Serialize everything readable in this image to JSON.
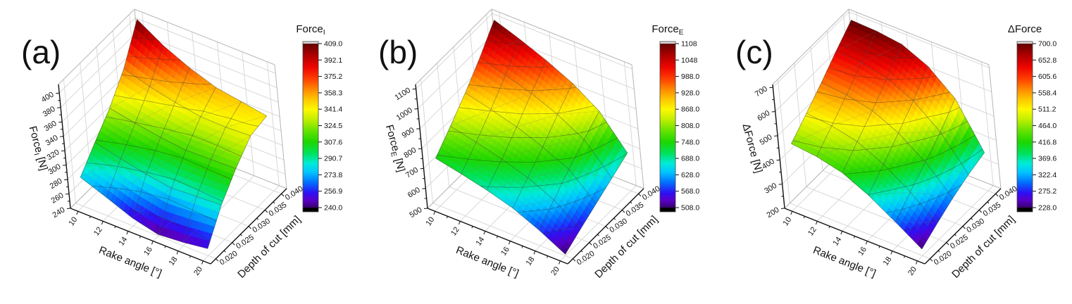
{
  "figure": {
    "background": "#ffffff",
    "description": "Three 3D surface plots of cutting forces versus rake angle and depth of cut"
  },
  "colors": {
    "axis": "#111111",
    "text": "#111111",
    "grid": "#d4d4d4",
    "box_edge": "#b5b5b5",
    "contour_line": "rgba(45,45,45,0.5)",
    "mesh_line": "rgba(70,70,70,0.5)",
    "diagonal_line": "rgba(120,120,120,0.3)",
    "colorbar_above": "#d9d9d9",
    "colorbar_below": "#000000",
    "colormap": [
      {
        "t": 0.0,
        "c": "#38006e"
      },
      {
        "t": 0.045,
        "c": "#5800c8"
      },
      {
        "t": 0.09,
        "c": "#2d10f5"
      },
      {
        "t": 0.155,
        "c": "#0072ff"
      },
      {
        "t": 0.215,
        "c": "#00c4ff"
      },
      {
        "t": 0.27,
        "c": "#00ebd7"
      },
      {
        "t": 0.33,
        "c": "#00e25e"
      },
      {
        "t": 0.4,
        "c": "#1cd600"
      },
      {
        "t": 0.47,
        "c": "#67e300"
      },
      {
        "t": 0.54,
        "c": "#c4ef00"
      },
      {
        "t": 0.6,
        "c": "#fdf800"
      },
      {
        "t": 0.665,
        "c": "#ffc200"
      },
      {
        "t": 0.725,
        "c": "#ff8400"
      },
      {
        "t": 0.785,
        "c": "#ff3f00"
      },
      {
        "t": 0.855,
        "c": "#ee0500"
      },
      {
        "t": 0.925,
        "c": "#b20000"
      },
      {
        "t": 1.0,
        "c": "#620000"
      }
    ]
  },
  "chart_data": [
    {
      "type": "surface",
      "panel_label": "(a)",
      "x_axis": {
        "title": "Rake angle [°]",
        "ticks": [
          "10",
          "12",
          "14",
          "16",
          "18",
          "20"
        ],
        "tick_values": [
          10,
          12,
          14,
          16,
          18,
          20
        ],
        "range": [
          9.4,
          20.6
        ]
      },
      "y_axis": {
        "title": "Depth of cut [mm]",
        "ticks": [
          "0.020",
          "0.025",
          "0.030",
          "0.035",
          "0.040"
        ],
        "tick_values": [
          0.02,
          0.025,
          0.03,
          0.035,
          0.04
        ],
        "range": [
          0.0184,
          0.0416
        ]
      },
      "z_axis": {
        "title_main": "Force",
        "title_sub": "I",
        "title_unit": " [N]",
        "ticks": [
          "240",
          "260",
          "280",
          "300",
          "320",
          "340",
          "360",
          "380",
          "400"
        ],
        "tick_values": [
          240,
          260,
          280,
          300,
          320,
          340,
          360,
          380,
          400
        ],
        "range": [
          240,
          412
        ]
      },
      "colorbar": {
        "title_main": "Force",
        "title_sub": "I",
        "min": 240.0,
        "max": 409.0,
        "tick_labels": [
          "409.0",
          "392.1",
          "375.2",
          "358.3",
          "341.4",
          "324.5",
          "307.6",
          "290.7",
          "273.8",
          "256.9",
          "240.0"
        ]
      },
      "surface": {
        "estimated": true,
        "x_values": [
          10,
          12,
          14,
          16,
          18,
          20
        ],
        "y_values": [
          0.02,
          0.025,
          0.03,
          0.035,
          0.04
        ],
        "z_values": [
          [
            280,
            266,
            251,
            242,
            245,
            250
          ],
          [
            306,
            297,
            289,
            284,
            286,
            288
          ],
          [
            331,
            324,
            318,
            314,
            315,
            316
          ],
          [
            363,
            352,
            344,
            338,
            337,
            339
          ],
          [
            409,
            386,
            369,
            356,
            350,
            344
          ]
        ]
      }
    },
    {
      "type": "surface",
      "panel_label": "(b)",
      "x_axis": {
        "title": "Rake angle [°]",
        "ticks": [
          "10",
          "12",
          "14",
          "16",
          "18",
          "20"
        ],
        "tick_values": [
          10,
          12,
          14,
          16,
          18,
          20
        ],
        "range": [
          9.4,
          20.6
        ]
      },
      "y_axis": {
        "title": "Depth of cut [mm]",
        "ticks": [
          "0.020",
          "0.025",
          "0.030",
          "0.035",
          "0.040"
        ],
        "tick_values": [
          0.02,
          0.025,
          0.03,
          0.035,
          0.04
        ],
        "range": [
          0.0184,
          0.0416
        ]
      },
      "z_axis": {
        "title_main": "Force",
        "title_sub": "E",
        "title_unit": " [N]",
        "ticks": [
          "500",
          "600",
          "700",
          "800",
          "900",
          "1000",
          "1100"
        ],
        "tick_values": [
          500,
          600,
          700,
          800,
          900,
          1000,
          1100
        ],
        "range": [
          500,
          1122
        ]
      },
      "colorbar": {
        "title_main": "Force",
        "title_sub": "E",
        "min": 508.0,
        "max": 1108.0,
        "tick_labels": [
          "1108",
          "1048",
          "988.0",
          "928.0",
          "868.0",
          "808.0",
          "748.0",
          "688.0",
          "628.0",
          "568.0",
          "508.0"
        ]
      },
      "surface": {
        "estimated": true,
        "x_values": [
          10,
          12,
          14,
          16,
          18,
          20
        ],
        "y_values": [
          0.02,
          0.025,
          0.03,
          0.035,
          0.04
        ],
        "z_values": [
          [
            740,
            712,
            680,
            640,
            580,
            508
          ],
          [
            820,
            790,
            755,
            710,
            650,
            555
          ],
          [
            905,
            872,
            835,
            785,
            720,
            600
          ],
          [
            1000,
            962,
            920,
            865,
            790,
            645
          ],
          [
            1108,
            1060,
            1005,
            940,
            850,
            690
          ]
        ]
      }
    },
    {
      "type": "surface",
      "panel_label": "(c)",
      "x_axis": {
        "title": "Rake angle [°]",
        "ticks": [
          "10",
          "12",
          "14",
          "16",
          "18",
          "20"
        ],
        "tick_values": [
          10,
          12,
          14,
          16,
          18,
          20
        ],
        "range": [
          9.4,
          20.6
        ]
      },
      "y_axis": {
        "title": "Depth of cut [mm]",
        "ticks": [
          "0.020",
          "0.025",
          "0.030",
          "0.035",
          "0.040"
        ],
        "tick_values": [
          0.02,
          0.025,
          0.03,
          0.035,
          0.04
        ],
        "range": [
          0.0184,
          0.0416
        ]
      },
      "z_axis": {
        "title_main": "ΔForce",
        "title_sub": "",
        "title_unit": " [N]",
        "ticks": [
          "200",
          "300",
          "400",
          "500",
          "600",
          "700"
        ],
        "tick_values": [
          200,
          300,
          400,
          500,
          600,
          700
        ],
        "range": [
          200,
          712
        ]
      },
      "colorbar": {
        "title_main": "ΔForce",
        "title_sub": "",
        "min": 228.0,
        "max": 700.0,
        "tick_labels": [
          "700.0",
          "652.8",
          "605.6",
          "558.4",
          "511.2",
          "464.0",
          "416.8",
          "369.6",
          "322.4",
          "275.2",
          "228.0"
        ]
      },
      "surface": {
        "estimated": true,
        "x_values": [
          10,
          12,
          14,
          16,
          18,
          20
        ],
        "y_values": [
          0.02,
          0.025,
          0.03,
          0.035,
          0.04
        ],
        "z_values": [
          [
            458,
            446,
            420,
            368,
            300,
            228
          ],
          [
            516,
            506,
            482,
            430,
            355,
            268
          ],
          [
            576,
            566,
            542,
            492,
            412,
            305
          ],
          [
            640,
            632,
            608,
            556,
            470,
            335
          ],
          [
            700,
            696,
            682,
            632,
            540,
            358
          ]
        ]
      }
    }
  ]
}
